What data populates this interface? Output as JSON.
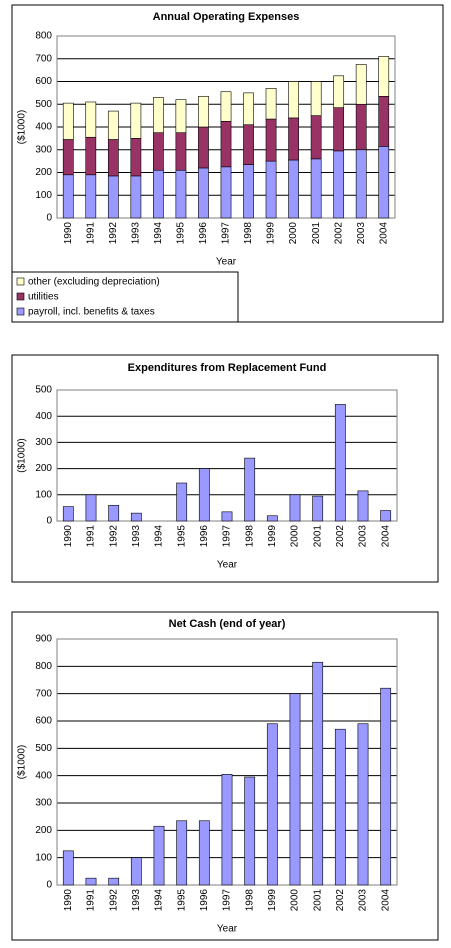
{
  "chart_data": [
    {
      "type": "bar",
      "stacked": true,
      "title": "Annual Operating Expenses",
      "x_label": "Year",
      "y_label": "($1000)",
      "categories": [
        "1990",
        "1991",
        "1992",
        "1993",
        "1994",
        "1995",
        "1996",
        "1997",
        "1998",
        "1999",
        "2000",
        "2001",
        "2002",
        "2003",
        "2004"
      ],
      "series": [
        {
          "name": "payroll, incl. benefits & taxes",
          "color": "#9999ff",
          "values": [
            190,
            190,
            185,
            185,
            210,
            210,
            220,
            225,
            235,
            250,
            255,
            260,
            295,
            300,
            315
          ]
        },
        {
          "name": "utilities",
          "color": "#993366",
          "values": [
            155,
            165,
            160,
            165,
            165,
            165,
            180,
            200,
            175,
            185,
            185,
            190,
            190,
            200,
            220
          ]
        },
        {
          "name": "other (excluding depreciation)",
          "color": "#ffffcc",
          "values": [
            160,
            155,
            125,
            155,
            155,
            145,
            135,
            130,
            140,
            135,
            160,
            150,
            140,
            175,
            175
          ]
        }
      ],
      "ylim": [
        0,
        800
      ],
      "yticks": [
        0,
        100,
        200,
        300,
        400,
        500,
        600,
        700,
        800
      ],
      "grid": true,
      "legend": "bottom"
    },
    {
      "type": "bar",
      "title": "Expenditures from Replacement Fund",
      "x_label": "Year",
      "y_label": "($1000)",
      "categories": [
        "1990",
        "1991",
        "1992",
        "1993",
        "1994",
        "1995",
        "1996",
        "1997",
        "1998",
        "1999",
        "2000",
        "2001",
        "2002",
        "2003",
        "2004"
      ],
      "values": [
        55,
        100,
        60,
        30,
        0,
        145,
        200,
        35,
        240,
        20,
        100,
        95,
        445,
        115,
        40
      ],
      "color": "#9999ff",
      "ylim": [
        0,
        500
      ],
      "yticks": [
        0,
        100,
        200,
        300,
        400,
        500
      ],
      "grid": true
    },
    {
      "type": "bar",
      "title": "Net Cash (end of year)",
      "x_label": "Year",
      "y_label": "($1000)",
      "categories": [
        "1990",
        "1991",
        "1992",
        "1993",
        "1994",
        "1995",
        "1996",
        "1997",
        "1998",
        "1999",
        "2000",
        "2001",
        "2002",
        "2003",
        "2004"
      ],
      "values": [
        125,
        25,
        25,
        100,
        215,
        235,
        235,
        405,
        395,
        590,
        700,
        815,
        570,
        590,
        720
      ],
      "color": "#9999ff",
      "ylim": [
        0,
        900
      ],
      "yticks": [
        0,
        100,
        200,
        300,
        400,
        500,
        600,
        700,
        800,
        900
      ],
      "grid": true
    }
  ]
}
